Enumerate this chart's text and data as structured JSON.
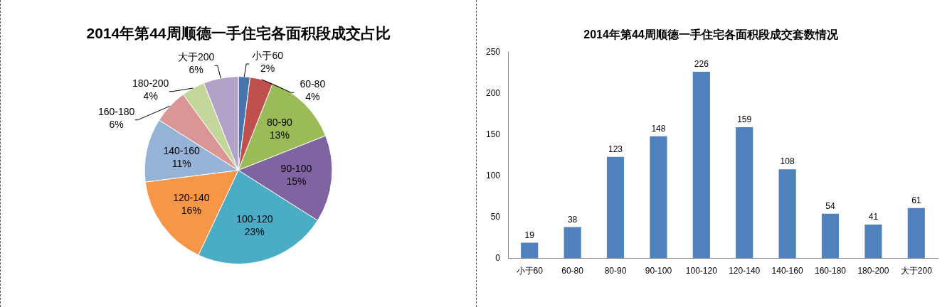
{
  "chart_data": [
    {
      "type": "pie",
      "title": "2014年第44周顺德一手住宅各面积段成交占比",
      "categories": [
        "小于60",
        "60-80",
        "80-90",
        "90-100",
        "100-120",
        "120-140",
        "140-160",
        "160-180",
        "180-200",
        "大于200"
      ],
      "values": [
        2,
        4,
        13,
        15,
        23,
        16,
        11,
        6,
        4,
        6
      ],
      "colors": [
        "#4674ab",
        "#c0504d",
        "#9bbb59",
        "#8064a2",
        "#4bacc6",
        "#f79646",
        "#95b3d7",
        "#d99694",
        "#c3d69b",
        "#b3a2c7"
      ],
      "value_labels": [
        "2%",
        "4%",
        "13%",
        "15%",
        "23%",
        "16%",
        "11%",
        "6%",
        "4%",
        "6%"
      ],
      "data_labels": true
    },
    {
      "type": "bar",
      "title": "2014年第44周顺德一手住宅各面积段成交套数情况",
      "categories": [
        "小于60",
        "60-80",
        "80-90",
        "90-100",
        "100-120",
        "120-140",
        "140-160",
        "160-180",
        "180-200",
        "大于200"
      ],
      "values": [
        19,
        38,
        123,
        148,
        226,
        159,
        108,
        54,
        41,
        61
      ],
      "color": "#4f81bd",
      "ylim": [
        0,
        250
      ],
      "yticks": [
        0,
        50,
        100,
        150,
        200,
        250
      ],
      "data_labels": true
    }
  ]
}
